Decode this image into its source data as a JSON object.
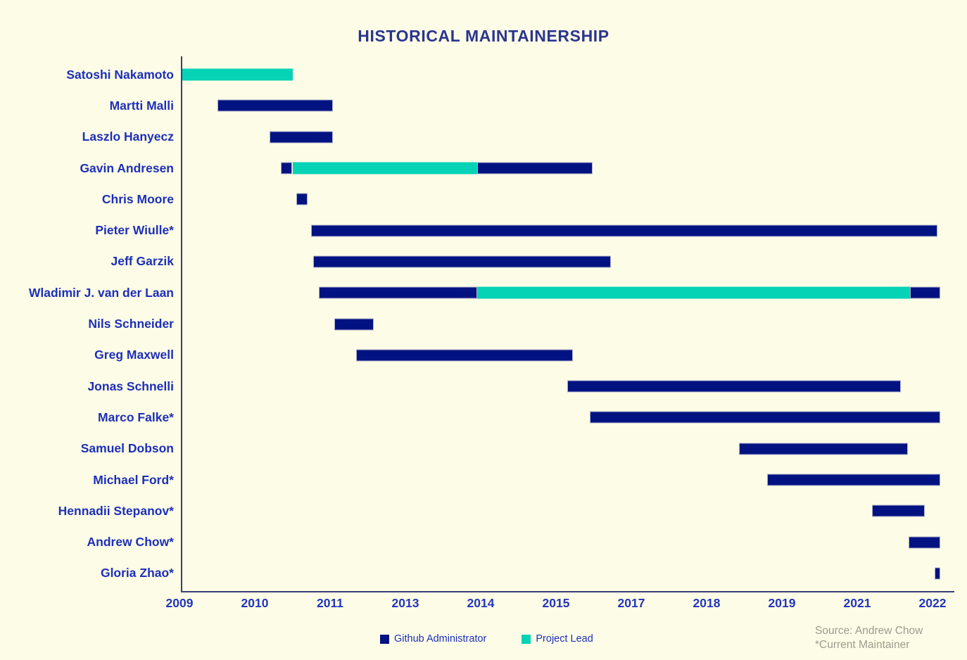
{
  "title": "HISTORICAL MAINTAINERSHIP",
  "colors": {
    "background": "#FDFDE7",
    "admin_bar": "#021381",
    "lead_bar": "#06D2B6",
    "bar_border": "#AFAFCD",
    "title_text": "#2A358F",
    "label_text": "#1D2FB8",
    "tick_text": "#2335BA",
    "axis_line": "#3C3C78",
    "source_text": "#9A9B8D"
  },
  "x_axis": {
    "tick_labels": [
      "2009",
      "2010",
      "2011",
      "2013",
      "2014",
      "2015",
      "2017",
      "2018",
      "2019",
      "2021",
      "2022"
    ],
    "tick_years": [
      2009,
      2010,
      2011,
      2013,
      2014,
      2015,
      2017,
      2018,
      2019,
      2021,
      2022
    ]
  },
  "legend": {
    "items": [
      {
        "label": "Github Administrator",
        "role": "Github Administrator",
        "color_key": "admin_bar"
      },
      {
        "label": "Project Lead",
        "role": "Project Lead",
        "color_key": "lead_bar"
      }
    ]
  },
  "source": {
    "line1": "Source: Andrew Chow",
    "line2": "*Current Maintainer"
  },
  "chart_data": {
    "type": "gantt",
    "title": "HISTORICAL MAINTAINERSHIP",
    "grid": false,
    "legend_position": "bottom",
    "x_range_years": [
      2009,
      2022.1
    ],
    "roles": [
      "Github Administrator",
      "Project Lead"
    ],
    "rows": [
      {
        "name": "Satoshi Nakamoto",
        "segments": [
          {
            "role": "Project Lead",
            "start": 2009.0,
            "end": 2010.5
          }
        ]
      },
      {
        "name": "Martti Malli",
        "segments": [
          {
            "role": "Github Administrator",
            "start": 2009.5,
            "end": 2011.08
          }
        ]
      },
      {
        "name": "Laszlo Hanyecz",
        "segments": [
          {
            "role": "Github Administrator",
            "start": 2010.2,
            "end": 2011.08
          }
        ]
      },
      {
        "name": "Gavin Andresen",
        "segments": [
          {
            "role": "Github Administrator",
            "start": 2010.35,
            "end": 2010.5
          },
          {
            "role": "Project Lead",
            "start": 2010.5,
            "end": 2013.95
          },
          {
            "role": "Github Administrator",
            "start": 2013.95,
            "end": 2015.97
          }
        ]
      },
      {
        "name": "Chris Moore",
        "segments": [
          {
            "role": "Github Administrator",
            "start": 2010.55,
            "end": 2010.7
          }
        ]
      },
      {
        "name": "Pieter Wiulle*",
        "segments": [
          {
            "role": "Github Administrator",
            "start": 2010.75,
            "end": 2022.07
          }
        ]
      },
      {
        "name": "Jeff Garzik",
        "segments": [
          {
            "role": "Github Administrator",
            "start": 2010.78,
            "end": 2016.45
          }
        ]
      },
      {
        "name": "Wladimir J. van der Laan",
        "segments": [
          {
            "role": "Github Administrator",
            "start": 2010.85,
            "end": 2013.95
          },
          {
            "role": "Project Lead",
            "start": 2013.95,
            "end": 2021.7
          },
          {
            "role": "Github Administrator",
            "start": 2021.7,
            "end": 2022.1
          }
        ]
      },
      {
        "name": "Nils Schneider",
        "segments": [
          {
            "role": "Github Administrator",
            "start": 2011.12,
            "end": 2012.15
          }
        ]
      },
      {
        "name": "Greg Maxwell",
        "segments": [
          {
            "role": "Github Administrator",
            "start": 2011.7,
            "end": 2015.45
          }
        ]
      },
      {
        "name": "Jonas Schnelli",
        "segments": [
          {
            "role": "Github Administrator",
            "start": 2015.3,
            "end": 2021.58
          }
        ]
      },
      {
        "name": "Marco Falke*",
        "segments": [
          {
            "role": "Github Administrator",
            "start": 2015.9,
            "end": 2022.1
          }
        ]
      },
      {
        "name": "Samuel Dobson",
        "segments": [
          {
            "role": "Github Administrator",
            "start": 2018.43,
            "end": 2021.67
          }
        ]
      },
      {
        "name": "Michael Ford*",
        "segments": [
          {
            "role": "Github Administrator",
            "start": 2018.8,
            "end": 2022.1
          }
        ]
      },
      {
        "name": "Hennadii Stepanov*",
        "segments": [
          {
            "role": "Github Administrator",
            "start": 2021.2,
            "end": 2021.9
          }
        ]
      },
      {
        "name": "Andrew Chow*",
        "segments": [
          {
            "role": "Github Administrator",
            "start": 2021.68,
            "end": 2022.1
          }
        ]
      },
      {
        "name": "Gloria Zhao*",
        "segments": [
          {
            "role": "Github Administrator",
            "start": 2022.03,
            "end": 2022.1
          }
        ]
      }
    ]
  }
}
